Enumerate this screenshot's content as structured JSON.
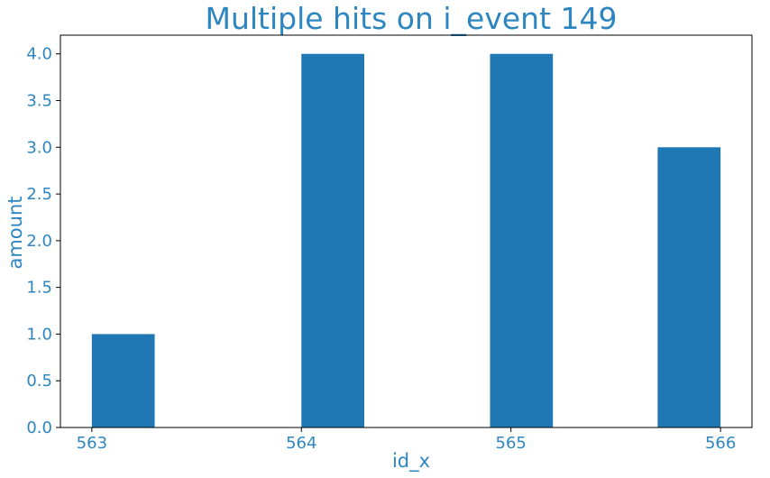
{
  "chart_data": {
    "type": "bar",
    "title": "Multiple hits on i_event 149",
    "xlabel": "id_x",
    "ylabel": "amount",
    "bars": [
      {
        "x_start": 563.0,
        "x_end": 563.3,
        "value": 1
      },
      {
        "x_start": 564.0,
        "x_end": 564.3,
        "value": 4
      },
      {
        "x_start": 564.9,
        "x_end": 565.2,
        "value": 4
      },
      {
        "x_start": 565.7,
        "x_end": 566.0,
        "value": 3
      }
    ],
    "xlim": [
      562.85,
      566.15
    ],
    "ylim": [
      0,
      4.2
    ],
    "xticks": [
      563,
      564,
      565,
      566
    ],
    "yticks": [
      "0.0",
      "0.5",
      "1.0",
      "1.5",
      "2.0",
      "2.5",
      "3.0",
      "3.5",
      "4.0"
    ],
    "grid": false,
    "bar_color": "#1f77b4",
    "text_color": "#2e86c1"
  }
}
